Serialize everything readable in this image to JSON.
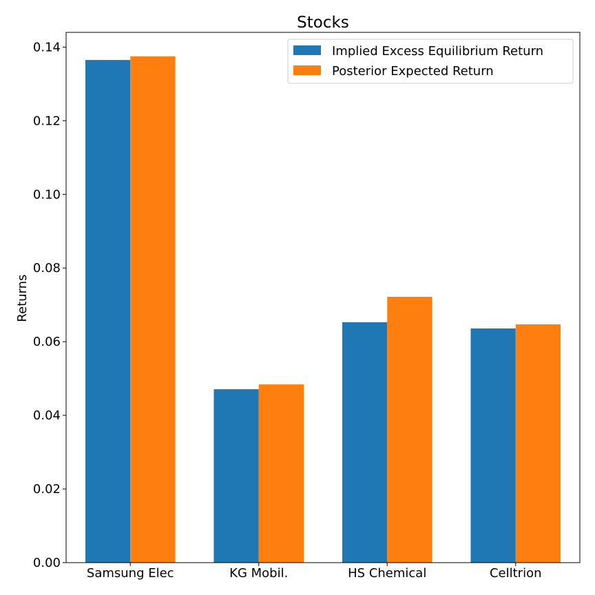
{
  "chart_data": {
    "type": "bar",
    "title": "Stocks",
    "xlabel": "",
    "ylabel": "Returns",
    "categories": [
      "Samsung Elec",
      "KG Mobil.",
      "HS Chemical",
      "Celltrion"
    ],
    "series": [
      {
        "name": "Implied Excess Equilibrium Return",
        "color": "#1f77b4",
        "values": [
          0.1365,
          0.0471,
          0.0653,
          0.0636
        ]
      },
      {
        "name": "Posterior Expected Return",
        "color": "#ff7f0e",
        "values": [
          0.1375,
          0.0484,
          0.0722,
          0.0647
        ]
      }
    ],
    "ylim": [
      0,
      0.144
    ],
    "yticks": [
      0.0,
      0.02,
      0.04,
      0.06,
      0.08,
      0.1,
      0.12,
      0.14
    ],
    "ytick_labels": [
      "0.00",
      "0.02",
      "0.04",
      "0.06",
      "0.08",
      "0.10",
      "0.12",
      "0.14"
    ],
    "grid": false,
    "legend_position": "top-right"
  }
}
